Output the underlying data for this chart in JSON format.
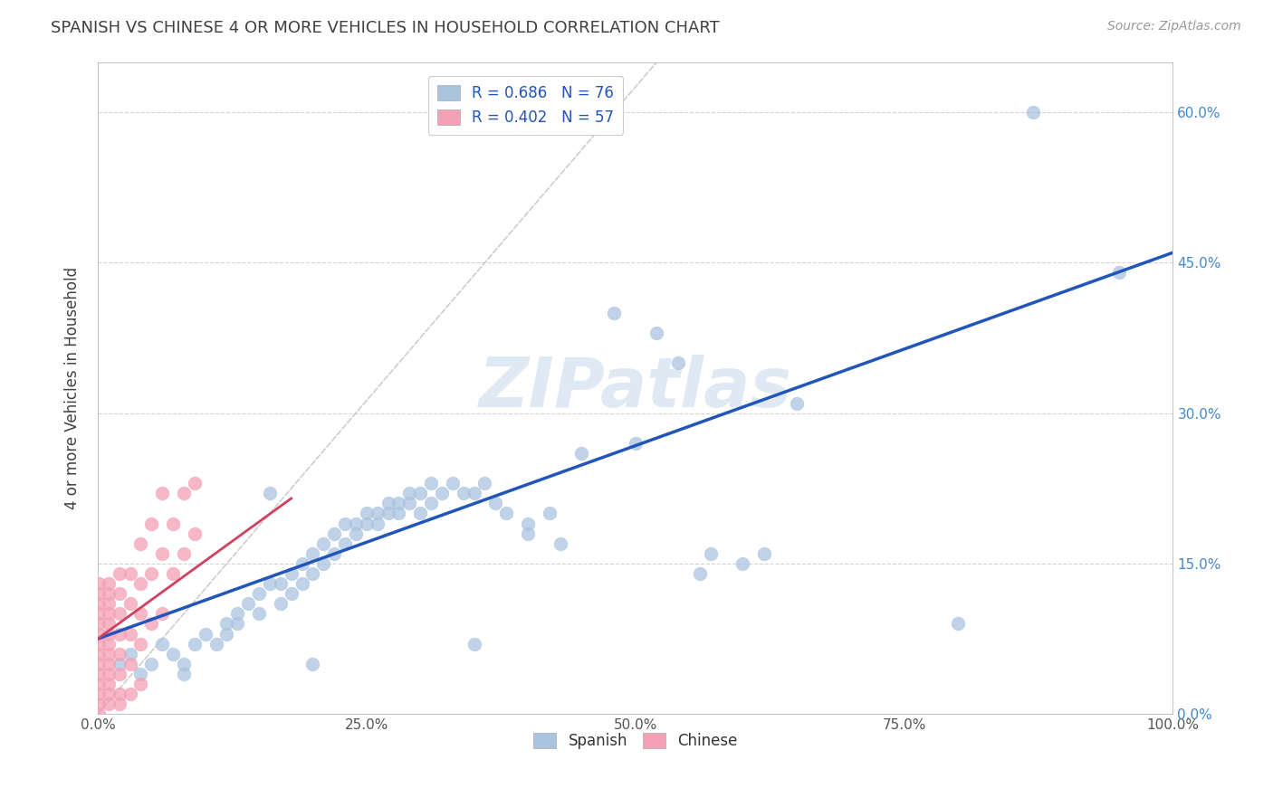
{
  "title": "SPANISH VS CHINESE 4 OR MORE VEHICLES IN HOUSEHOLD CORRELATION CHART",
  "source": "Source: ZipAtlas.com",
  "ylabel": "4 or more Vehicles in Household",
  "watermark": "ZIPatlas",
  "xlim": [
    0.0,
    1.0
  ],
  "ylim": [
    0.0,
    0.65
  ],
  "xticks": [
    0.0,
    0.25,
    0.5,
    0.75,
    1.0
  ],
  "xtick_labels": [
    "0.0%",
    "25.0%",
    "50.0%",
    "75.0%",
    "100.0%"
  ],
  "yticks": [
    0.0,
    0.15,
    0.3,
    0.45,
    0.6
  ],
  "ytick_labels": [
    "0.0%",
    "15.0%",
    "30.0%",
    "45.0%",
    "60.0%"
  ],
  "bg_color": "#ffffff",
  "spanish_color": "#aac4e0",
  "spanish_line_color": "#2255bb",
  "chinese_color": "#f4a0b5",
  "chinese_line_color": "#d04060",
  "grid_color": "#c8c8c8",
  "title_color": "#404040",
  "right_tick_color": "#4488cc",
  "spanish_scatter": [
    [
      0.02,
      0.05
    ],
    [
      0.03,
      0.06
    ],
    [
      0.04,
      0.04
    ],
    [
      0.05,
      0.05
    ],
    [
      0.06,
      0.07
    ],
    [
      0.07,
      0.06
    ],
    [
      0.08,
      0.05
    ],
    [
      0.09,
      0.07
    ],
    [
      0.1,
      0.08
    ],
    [
      0.11,
      0.07
    ],
    [
      0.12,
      0.09
    ],
    [
      0.12,
      0.08
    ],
    [
      0.13,
      0.1
    ],
    [
      0.13,
      0.09
    ],
    [
      0.14,
      0.11
    ],
    [
      0.15,
      0.12
    ],
    [
      0.15,
      0.1
    ],
    [
      0.16,
      0.22
    ],
    [
      0.16,
      0.13
    ],
    [
      0.17,
      0.13
    ],
    [
      0.17,
      0.11
    ],
    [
      0.18,
      0.14
    ],
    [
      0.18,
      0.12
    ],
    [
      0.19,
      0.15
    ],
    [
      0.19,
      0.13
    ],
    [
      0.2,
      0.16
    ],
    [
      0.2,
      0.14
    ],
    [
      0.2,
      0.05
    ],
    [
      0.21,
      0.17
    ],
    [
      0.21,
      0.15
    ],
    [
      0.22,
      0.18
    ],
    [
      0.22,
      0.16
    ],
    [
      0.23,
      0.19
    ],
    [
      0.23,
      0.17
    ],
    [
      0.24,
      0.19
    ],
    [
      0.24,
      0.18
    ],
    [
      0.25,
      0.2
    ],
    [
      0.25,
      0.19
    ],
    [
      0.26,
      0.2
    ],
    [
      0.26,
      0.19
    ],
    [
      0.27,
      0.21
    ],
    [
      0.27,
      0.2
    ],
    [
      0.28,
      0.21
    ],
    [
      0.28,
      0.2
    ],
    [
      0.29,
      0.22
    ],
    [
      0.29,
      0.21
    ],
    [
      0.3,
      0.22
    ],
    [
      0.3,
      0.2
    ],
    [
      0.31,
      0.23
    ],
    [
      0.31,
      0.21
    ],
    [
      0.32,
      0.22
    ],
    [
      0.33,
      0.23
    ],
    [
      0.34,
      0.22
    ],
    [
      0.35,
      0.22
    ],
    [
      0.36,
      0.23
    ],
    [
      0.37,
      0.21
    ],
    [
      0.38,
      0.2
    ],
    [
      0.4,
      0.19
    ],
    [
      0.4,
      0.18
    ],
    [
      0.42,
      0.2
    ],
    [
      0.43,
      0.17
    ],
    [
      0.45,
      0.26
    ],
    [
      0.48,
      0.4
    ],
    [
      0.5,
      0.27
    ],
    [
      0.52,
      0.38
    ],
    [
      0.54,
      0.35
    ],
    [
      0.56,
      0.14
    ],
    [
      0.57,
      0.16
    ],
    [
      0.6,
      0.15
    ],
    [
      0.62,
      0.16
    ],
    [
      0.65,
      0.31
    ],
    [
      0.8,
      0.09
    ],
    [
      0.87,
      0.6
    ],
    [
      0.95,
      0.44
    ],
    [
      0.08,
      0.04
    ],
    [
      0.35,
      0.07
    ]
  ],
  "chinese_scatter": [
    [
      0.001,
      0.01
    ],
    [
      0.001,
      0.02
    ],
    [
      0.001,
      0.03
    ],
    [
      0.001,
      0.04
    ],
    [
      0.001,
      0.05
    ],
    [
      0.001,
      0.06
    ],
    [
      0.001,
      0.07
    ],
    [
      0.001,
      0.08
    ],
    [
      0.001,
      0.09
    ],
    [
      0.001,
      0.1
    ],
    [
      0.001,
      0.11
    ],
    [
      0.001,
      0.12
    ],
    [
      0.001,
      0.13
    ],
    [
      0.001,
      0.0
    ],
    [
      0.01,
      0.01
    ],
    [
      0.01,
      0.02
    ],
    [
      0.01,
      0.03
    ],
    [
      0.01,
      0.04
    ],
    [
      0.01,
      0.05
    ],
    [
      0.01,
      0.06
    ],
    [
      0.01,
      0.07
    ],
    [
      0.01,
      0.08
    ],
    [
      0.01,
      0.09
    ],
    [
      0.01,
      0.1
    ],
    [
      0.01,
      0.11
    ],
    [
      0.01,
      0.12
    ],
    [
      0.01,
      0.13
    ],
    [
      0.02,
      0.01
    ],
    [
      0.02,
      0.02
    ],
    [
      0.02,
      0.04
    ],
    [
      0.02,
      0.06
    ],
    [
      0.02,
      0.08
    ],
    [
      0.02,
      0.1
    ],
    [
      0.02,
      0.12
    ],
    [
      0.02,
      0.14
    ],
    [
      0.03,
      0.02
    ],
    [
      0.03,
      0.05
    ],
    [
      0.03,
      0.08
    ],
    [
      0.03,
      0.11
    ],
    [
      0.03,
      0.14
    ],
    [
      0.04,
      0.03
    ],
    [
      0.04,
      0.07
    ],
    [
      0.04,
      0.1
    ],
    [
      0.04,
      0.13
    ],
    [
      0.04,
      0.17
    ],
    [
      0.05,
      0.09
    ],
    [
      0.05,
      0.14
    ],
    [
      0.05,
      0.19
    ],
    [
      0.06,
      0.1
    ],
    [
      0.06,
      0.16
    ],
    [
      0.06,
      0.22
    ],
    [
      0.07,
      0.14
    ],
    [
      0.07,
      0.19
    ],
    [
      0.08,
      0.16
    ],
    [
      0.08,
      0.22
    ],
    [
      0.09,
      0.18
    ],
    [
      0.09,
      0.23
    ]
  ]
}
